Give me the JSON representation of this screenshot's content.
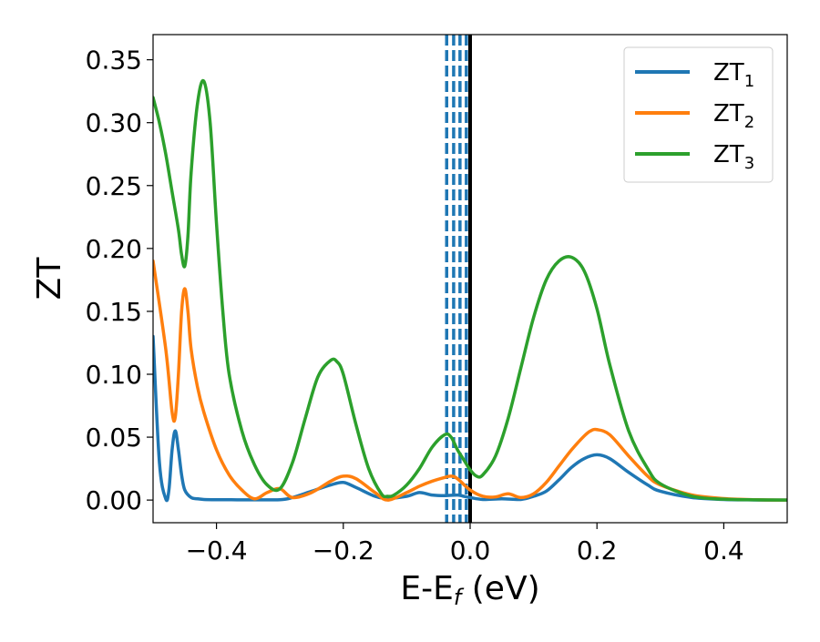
{
  "chart_data": {
    "type": "line",
    "xlabel": "E-E_f (eV)",
    "xlabel_parts": {
      "main": "E-E",
      "sub": "f",
      "unit": " (eV)"
    },
    "ylabel": "ZT",
    "xlim": [
      -0.5,
      0.5
    ],
    "ylim": [
      -0.018,
      0.37
    ],
    "xticks": [
      -0.4,
      -0.2,
      0.0,
      0.2,
      0.4
    ],
    "xtick_labels": [
      "−0.4",
      "−0.2",
      "0.0",
      "0.2",
      "0.4"
    ],
    "yticks": [
      0.0,
      0.05,
      0.1,
      0.15,
      0.2,
      0.25,
      0.3,
      0.35
    ],
    "ytick_labels": [
      "0.00",
      "0.05",
      "0.10",
      "0.15",
      "0.20",
      "0.25",
      "0.30",
      "0.35"
    ],
    "grid": false,
    "legend_position": "top-right",
    "vlines": [
      {
        "x": 0.0,
        "style": "solid",
        "color": "#000000"
      },
      {
        "x": -0.037,
        "style": "dashed",
        "color": "#1f77b4"
      },
      {
        "x": -0.026,
        "style": "dashed",
        "color": "#1f77b4"
      },
      {
        "x": -0.016,
        "style": "dashed",
        "color": "#1f77b4"
      },
      {
        "x": -0.006,
        "style": "dashed",
        "color": "#1f77b4"
      }
    ],
    "series": [
      {
        "name": "ZT_1",
        "legend_main": "ZT",
        "legend_sub": "1",
        "color": "#1f77b4",
        "x": [
          -0.5,
          -0.49,
          -0.48,
          -0.475,
          -0.47,
          -0.465,
          -0.46,
          -0.455,
          -0.45,
          -0.44,
          -0.43,
          -0.42,
          -0.4,
          -0.35,
          -0.3,
          -0.28,
          -0.25,
          -0.22,
          -0.2,
          -0.18,
          -0.15,
          -0.13,
          -0.1,
          -0.08,
          -0.06,
          -0.04,
          -0.02,
          -0.01,
          0.0,
          0.02,
          0.05,
          0.08,
          0.1,
          0.12,
          0.14,
          0.16,
          0.18,
          0.2,
          0.22,
          0.25,
          0.28,
          0.3,
          0.35,
          0.4,
          0.45,
          0.5
        ],
        "y": [
          0.13,
          0.03,
          0.001,
          0.008,
          0.04,
          0.055,
          0.04,
          0.02,
          0.008,
          0.002,
          0.001,
          0.0005,
          0.0003,
          0.0002,
          0.0003,
          0.002,
          0.007,
          0.012,
          0.014,
          0.01,
          0.003,
          0.0015,
          0.003,
          0.006,
          0.004,
          0.0035,
          0.004,
          0.003,
          0.002,
          0.0005,
          0.001,
          0.0005,
          0.003,
          0.007,
          0.016,
          0.026,
          0.033,
          0.036,
          0.033,
          0.022,
          0.012,
          0.007,
          0.002,
          0.0005,
          0.0001,
          0.0
        ]
      },
      {
        "name": "ZT_2",
        "legend_main": "ZT",
        "legend_sub": "2",
        "color": "#ff7f0e",
        "x": [
          -0.5,
          -0.48,
          -0.47,
          -0.465,
          -0.46,
          -0.455,
          -0.45,
          -0.445,
          -0.44,
          -0.43,
          -0.42,
          -0.4,
          -0.38,
          -0.36,
          -0.34,
          -0.32,
          -0.3,
          -0.28,
          -0.25,
          -0.22,
          -0.2,
          -0.18,
          -0.15,
          -0.13,
          -0.1,
          -0.08,
          -0.06,
          -0.04,
          -0.03,
          -0.02,
          0.0,
          0.02,
          0.04,
          0.06,
          0.08,
          0.1,
          0.12,
          0.14,
          0.16,
          0.18,
          0.19,
          0.2,
          0.22,
          0.25,
          0.28,
          0.3,
          0.35,
          0.4,
          0.45,
          0.5
        ],
        "y": [
          0.19,
          0.12,
          0.07,
          0.066,
          0.1,
          0.15,
          0.168,
          0.15,
          0.12,
          0.09,
          0.07,
          0.04,
          0.02,
          0.008,
          0.001,
          0.006,
          0.009,
          0.002,
          0.006,
          0.015,
          0.019,
          0.017,
          0.006,
          0.0,
          0.006,
          0.011,
          0.015,
          0.018,
          0.019,
          0.017,
          0.008,
          0.003,
          0.0025,
          0.005,
          0.002,
          0.005,
          0.014,
          0.027,
          0.04,
          0.051,
          0.055,
          0.056,
          0.052,
          0.035,
          0.019,
          0.012,
          0.004,
          0.0012,
          0.0003,
          0.0
        ]
      },
      {
        "name": "ZT_3",
        "legend_main": "ZT",
        "legend_sub": "3",
        "color": "#2ca02c",
        "x": [
          -0.5,
          -0.49,
          -0.48,
          -0.47,
          -0.46,
          -0.455,
          -0.45,
          -0.445,
          -0.44,
          -0.43,
          -0.42,
          -0.41,
          -0.4,
          -0.39,
          -0.38,
          -0.36,
          -0.34,
          -0.32,
          -0.3,
          -0.28,
          -0.26,
          -0.24,
          -0.22,
          -0.21,
          -0.2,
          -0.18,
          -0.16,
          -0.14,
          -0.13,
          -0.12,
          -0.1,
          -0.08,
          -0.06,
          -0.04,
          -0.03,
          -0.02,
          -0.01,
          0.0,
          0.01,
          0.02,
          0.04,
          0.06,
          0.08,
          0.1,
          0.12,
          0.14,
          0.16,
          0.18,
          0.2,
          0.22,
          0.25,
          0.28,
          0.3,
          0.35,
          0.4,
          0.45,
          0.5
        ],
        "y": [
          0.32,
          0.3,
          0.275,
          0.245,
          0.215,
          0.195,
          0.186,
          0.21,
          0.26,
          0.315,
          0.333,
          0.3,
          0.22,
          0.15,
          0.1,
          0.055,
          0.028,
          0.012,
          0.009,
          0.03,
          0.065,
          0.098,
          0.111,
          0.11,
          0.1,
          0.06,
          0.025,
          0.005,
          0.003,
          0.004,
          0.012,
          0.025,
          0.042,
          0.052,
          0.05,
          0.04,
          0.032,
          0.024,
          0.019,
          0.02,
          0.035,
          0.065,
          0.105,
          0.145,
          0.175,
          0.19,
          0.193,
          0.182,
          0.152,
          0.108,
          0.055,
          0.025,
          0.013,
          0.003,
          0.0007,
          0.0002,
          0.0
        ]
      }
    ]
  }
}
